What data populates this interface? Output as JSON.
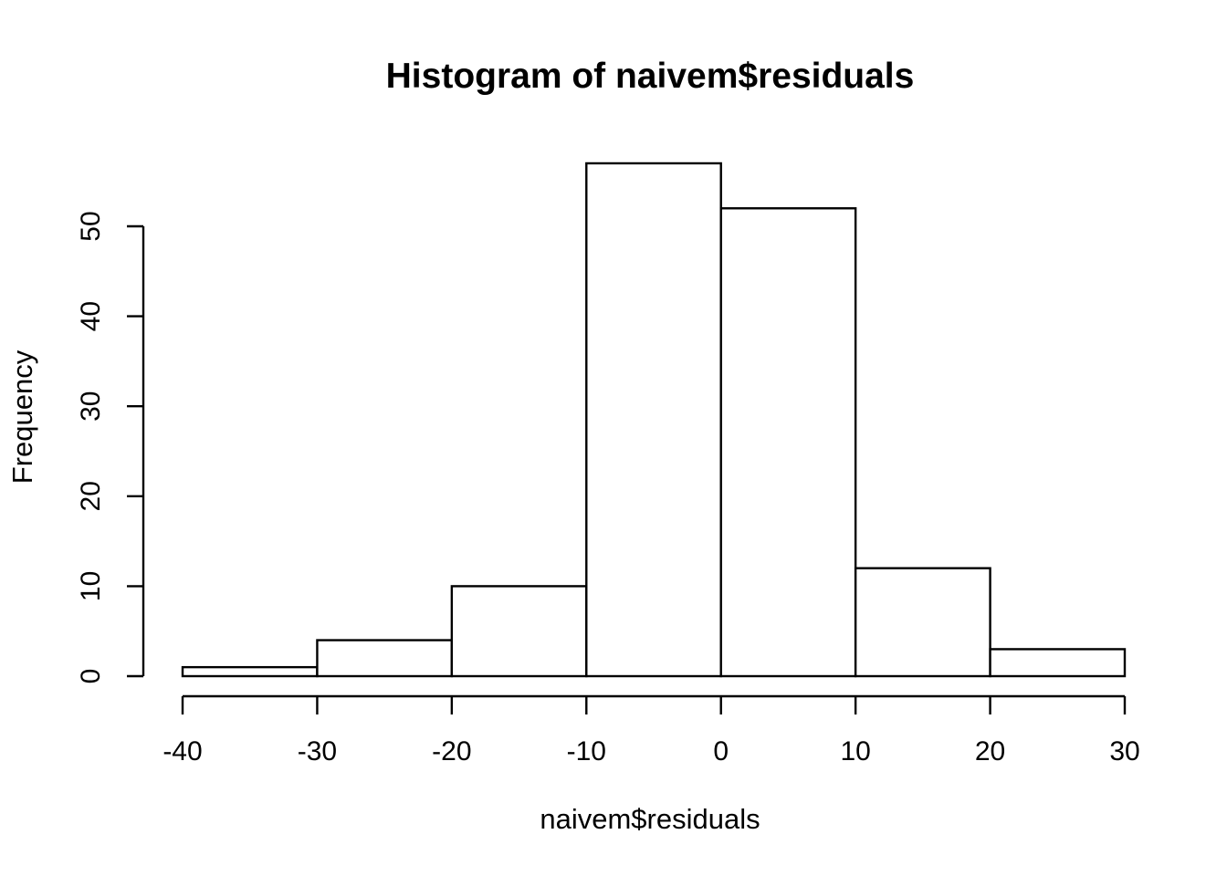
{
  "figure": {
    "background": "#ffffff"
  },
  "chart_data": {
    "type": "bar",
    "subtype": "histogram",
    "title": "Histogram of naivem$residuals",
    "xlabel": "naivem$residuals",
    "ylabel": "Frequency",
    "bin_edges": [
      -40,
      -30,
      -20,
      -10,
      0,
      10,
      20,
      30
    ],
    "counts": [
      1,
      4,
      10,
      57,
      52,
      12,
      3
    ],
    "x_ticks": [
      "-40",
      "-30",
      "-20",
      "-10",
      "0",
      "10",
      "20",
      "30"
    ],
    "x_tick_values": [
      -40,
      -30,
      -20,
      -10,
      0,
      10,
      20,
      30
    ],
    "y_ticks": [
      "0",
      "10",
      "20",
      "30",
      "40",
      "50"
    ],
    "y_tick_values": [
      0,
      10,
      20,
      30,
      40,
      50
    ],
    "xlim": [
      -40,
      30
    ],
    "y_axis_max": 50,
    "grid": false,
    "legend": "none",
    "bar_fill": "#ffffff",
    "bar_stroke": "#000000",
    "axis_color": "#000000",
    "text_color": "#000000"
  }
}
